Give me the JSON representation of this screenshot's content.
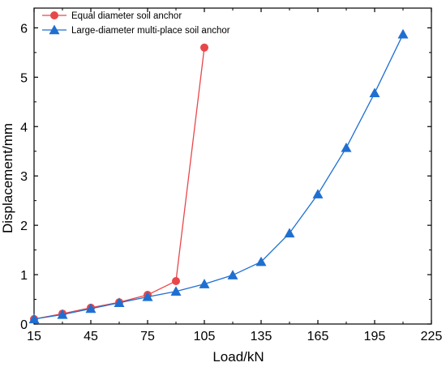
{
  "chart_data": {
    "type": "line",
    "title": "",
    "xlabel": "Load/kN",
    "ylabel": "Displacement/mm",
    "xlim": [
      15,
      225
    ],
    "ylim": [
      0,
      6.4
    ],
    "xticks": [
      15,
      45,
      75,
      105,
      135,
      165,
      195,
      225
    ],
    "yticks": [
      0,
      1,
      2,
      3,
      4,
      5,
      6
    ],
    "grid": false,
    "legend": "top-left",
    "series": [
      {
        "name": "Equal diameter soil anchor",
        "color": "#e8474a",
        "marker": "circle",
        "x": [
          15,
          30,
          45,
          60,
          75,
          90,
          105
        ],
        "y": [
          0.1,
          0.21,
          0.33,
          0.44,
          0.59,
          0.87,
          5.6
        ]
      },
      {
        "name": "Large-diameter multi-place soil anchor",
        "color": "#1f6fd1",
        "marker": "triangle",
        "x": [
          15,
          30,
          45,
          60,
          75,
          90,
          105,
          120,
          135,
          150,
          165,
          180,
          195,
          210
        ],
        "y": [
          0.1,
          0.19,
          0.31,
          0.43,
          0.55,
          0.66,
          0.81,
          0.99,
          1.26,
          1.84,
          2.63,
          3.57,
          4.68,
          5.87
        ]
      }
    ]
  }
}
